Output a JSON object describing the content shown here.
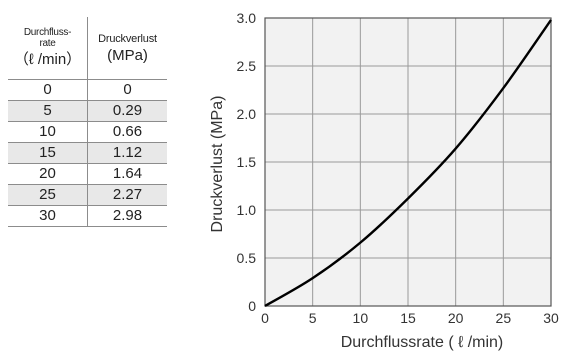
{
  "table": {
    "header": {
      "col1_line1": "Durchfluss-",
      "col1_line2": "rate",
      "col1_unit": "（ℓ /min）",
      "col2_name": "Druckverlust",
      "col2_unit": "(MPa)"
    },
    "rows": [
      [
        "0",
        "0"
      ],
      [
        "5",
        "0.29"
      ],
      [
        "10",
        "0.66"
      ],
      [
        "15",
        "1.12"
      ],
      [
        "20",
        "1.64"
      ],
      [
        "25",
        "2.27"
      ],
      [
        "30",
        "2.98"
      ]
    ]
  },
  "chart_data": {
    "type": "line",
    "xlabel": "Durchflussrate ( ℓ /min)",
    "ylabel": "Druckverlust (MPa)",
    "xlim": [
      0,
      30
    ],
    "ylim": [
      0,
      3.0
    ],
    "x_ticks": [
      "0",
      "5",
      "10",
      "15",
      "20",
      "25",
      "30"
    ],
    "y_ticks": [
      "0",
      "0.5",
      "1.0",
      "1.5",
      "2.0",
      "2.5",
      "3.0"
    ],
    "grid": true,
    "series": [
      {
        "x": [
          0,
          5,
          10,
          15,
          20,
          25,
          30
        ],
        "y": [
          0,
          0.29,
          0.66,
          1.12,
          1.64,
          2.27,
          2.98
        ]
      }
    ],
    "colors": {
      "plot_bg": "#f2f2f2",
      "grid": "#9a9a9a",
      "line": "#000000"
    }
  }
}
